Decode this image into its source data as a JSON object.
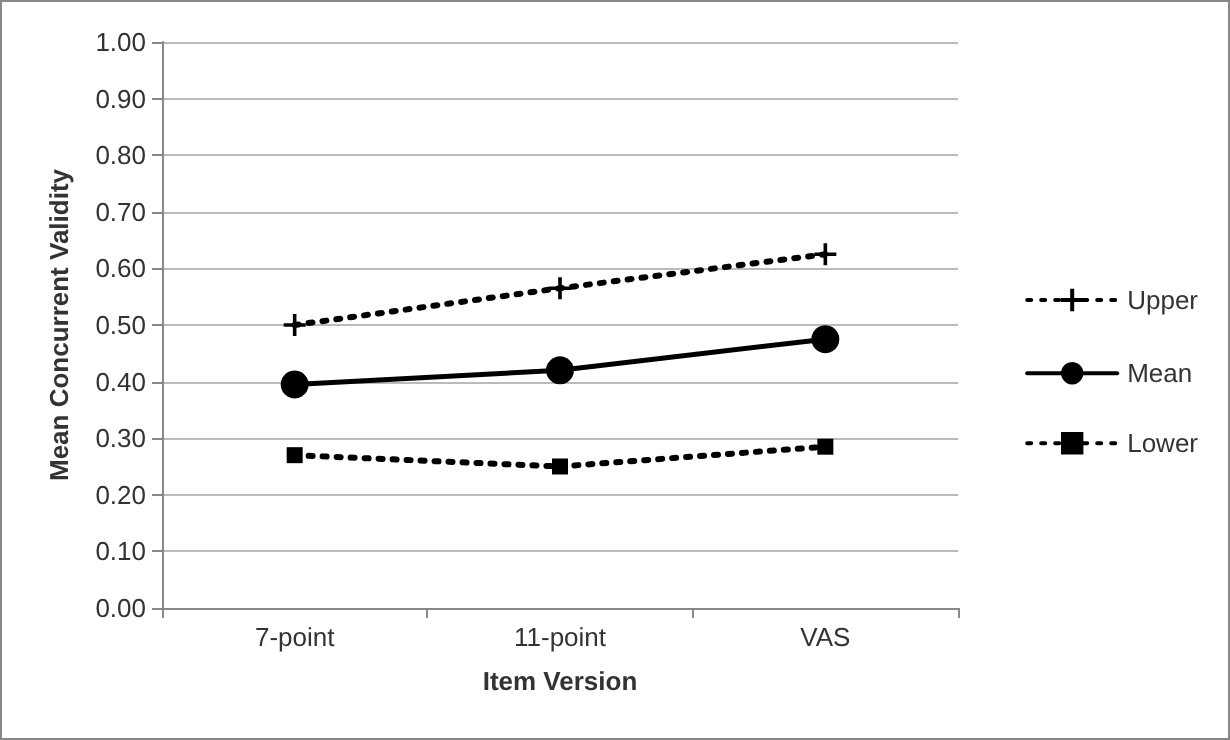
{
  "chart_data": {
    "type": "line",
    "xlabel": "Item Version",
    "ylabel": "Mean Concurrent Validity",
    "categories": [
      "7-point",
      "11-point",
      "VAS"
    ],
    "series": [
      {
        "name": "Upper",
        "color": "#000000",
        "values": [
          0.5,
          0.565,
          0.625
        ],
        "marker": "cross",
        "line_style": "dotted"
      },
      {
        "name": "Mean",
        "color": "#000000",
        "values": [
          0.395,
          0.42,
          0.475
        ],
        "marker": "circle",
        "line_style": "solid"
      },
      {
        "name": "Lower",
        "color": "#000000",
        "values": [
          0.27,
          0.25,
          0.285
        ],
        "marker": "square",
        "line_style": "dotted"
      }
    ],
    "ylim": [
      0,
      1
    ],
    "yticks": [
      {
        "value": 0,
        "label": "0.00"
      },
      {
        "value": 0.1,
        "label": "0.10"
      },
      {
        "value": 0.2,
        "label": "0.20"
      },
      {
        "value": 0.3,
        "label": "0.30"
      },
      {
        "value": 0.4,
        "label": "0.40"
      },
      {
        "value": 0.5,
        "label": "0.50"
      },
      {
        "value": 0.6,
        "label": "0.60"
      },
      {
        "value": 0.7,
        "label": "0.70"
      },
      {
        "value": 0.8,
        "label": "0.80"
      },
      {
        "value": 0.9,
        "label": "0.90"
      },
      {
        "value": 1,
        "label": "1.00"
      }
    ],
    "grid": "y",
    "legend": "right"
  }
}
